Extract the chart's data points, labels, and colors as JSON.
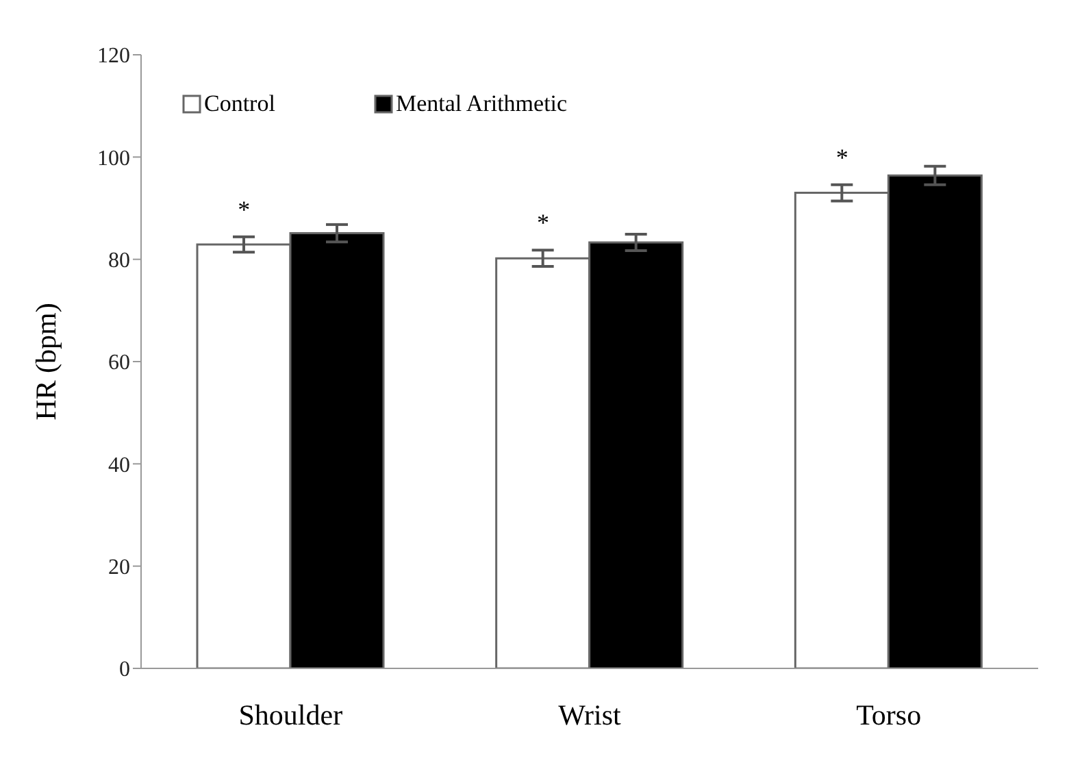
{
  "chart_data": {
    "type": "bar",
    "ylabel": "HR (bpm)",
    "categories": [
      "Shoulder",
      "Wrist",
      "Torso"
    ],
    "series": [
      {
        "name": "Control",
        "color": "#ffffff",
        "values": [
          82.9,
          80.2,
          93.0
        ],
        "errors": [
          1.5,
          1.6,
          1.6
        ]
      },
      {
        "name": "Mental Arithmetic",
        "color": "#000000",
        "values": [
          85.1,
          83.3,
          96.4
        ],
        "errors": [
          1.7,
          1.6,
          1.8
        ]
      }
    ],
    "ylim": [
      0,
      120
    ],
    "yticks": [
      0,
      20,
      40,
      60,
      80,
      100,
      120
    ],
    "grid": false,
    "legend": "top left",
    "annotations": [
      "*",
      "*",
      "*"
    ]
  }
}
